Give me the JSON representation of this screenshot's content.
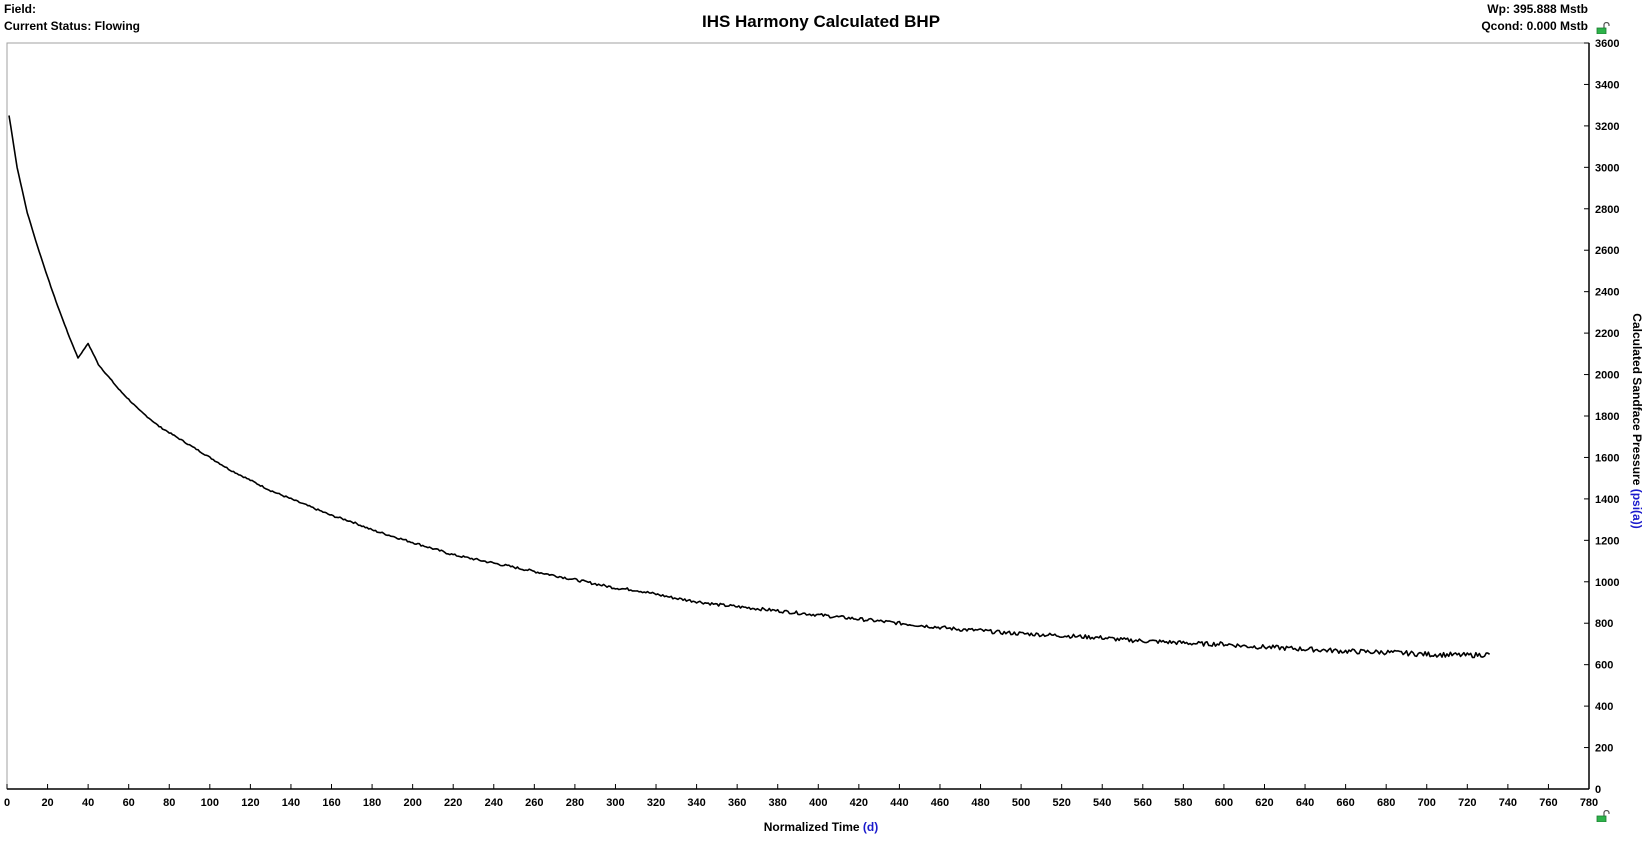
{
  "header": {
    "field_label": "Field:",
    "status_label": "Current Status: Flowing",
    "wp_label": "Wp: 395.888 Mstb",
    "qcond_label": "Qcond: 0.000 Mstb"
  },
  "icons": {
    "lock_top": "unlocked-padlock-icon",
    "lock_bottom": "unlocked-padlock-icon"
  },
  "chart_data": {
    "type": "line",
    "title": "IHS Harmony Calculated BHP",
    "xlabel": "Normalized Time",
    "xlabel_unit": "(d)",
    "ylabel": "Calculated Sandface Pressure",
    "ylabel_unit": "(psi(a))",
    "xlim": [
      0,
      780
    ],
    "ylim": [
      0,
      3600
    ],
    "x_ticks": [
      0,
      20,
      40,
      60,
      80,
      100,
      120,
      140,
      160,
      180,
      200,
      220,
      240,
      260,
      280,
      300,
      320,
      340,
      360,
      380,
      400,
      420,
      440,
      460,
      480,
      500,
      520,
      540,
      560,
      580,
      600,
      620,
      640,
      660,
      680,
      700,
      720,
      740,
      760,
      780
    ],
    "y_ticks": [
      0,
      200,
      400,
      600,
      800,
      1000,
      1200,
      1400,
      1600,
      1800,
      2000,
      2200,
      2400,
      2600,
      2800,
      3000,
      3200,
      3400,
      3600
    ],
    "y_axis_side": "right",
    "grid": false,
    "legend": "none",
    "line_color": "#000000",
    "series": [
      {
        "x": [
          1,
          5,
          10,
          15,
          20,
          25,
          30,
          35,
          40,
          45,
          50,
          55,
          60,
          65,
          70,
          75,
          80,
          85,
          90,
          95,
          100,
          110,
          120,
          130,
          140,
          150,
          160,
          170,
          180,
          190,
          200,
          210,
          220,
          230,
          240,
          250,
          260,
          270,
          280,
          290,
          300,
          310,
          320,
          330,
          340,
          350,
          360,
          370,
          380,
          390,
          400,
          410,
          420,
          430,
          440,
          450,
          460,
          470,
          480,
          490,
          500,
          510,
          520,
          530,
          540,
          550,
          560,
          570,
          580,
          590,
          600,
          610,
          620,
          630,
          640,
          650,
          660,
          670,
          680,
          690,
          700,
          710,
          720,
          731
        ],
        "y": [
          3250,
          3000,
          2780,
          2620,
          2470,
          2330,
          2200,
          2080,
          2150,
          2050,
          1990,
          1930,
          1880,
          1830,
          1790,
          1750,
          1720,
          1690,
          1660,
          1630,
          1600,
          1540,
          1490,
          1440,
          1400,
          1360,
          1320,
          1290,
          1250,
          1220,
          1190,
          1160,
          1130,
          1110,
          1090,
          1070,
          1050,
          1030,
          1010,
          990,
          970,
          960,
          940,
          920,
          905,
          890,
          880,
          870,
          860,
          850,
          840,
          830,
          820,
          810,
          800,
          790,
          780,
          770,
          765,
          755,
          750,
          745,
          740,
          735,
          730,
          720,
          715,
          710,
          705,
          700,
          700,
          690,
          685,
          680,
          675,
          670,
          665,
          662,
          660,
          655,
          650,
          648,
          645,
          650
        ]
      }
    ]
  }
}
